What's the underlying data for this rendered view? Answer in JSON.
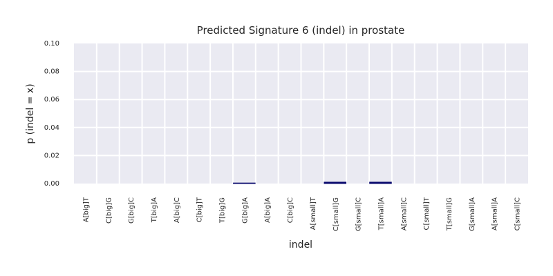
{
  "chart_data": {
    "type": "bar",
    "title": "Predicted Signature 6 (indel) in prostate",
    "xlabel": "indel",
    "ylabel": "p (indel = x)",
    "categories": [
      "A[big]T",
      "C[big]G",
      "G[big]C",
      "T[big]A",
      "A[big]C",
      "C[big]T",
      "T[big]G",
      "G[big]A",
      "A[big]A",
      "C[big]C",
      "A[small]T",
      "C[small]G",
      "G[small]C",
      "T[small]A",
      "A[small]C",
      "C[small]T",
      "T[small]G",
      "G[small]A",
      "A[small]A",
      "C[small]C"
    ],
    "values": [
      0,
      0,
      0,
      0,
      0,
      0,
      0,
      0.0004,
      0,
      0,
      0,
      0.001,
      0,
      0.001,
      0,
      0,
      0,
      0,
      0,
      0
    ],
    "yticks": [
      "0.00",
      "0.02",
      "0.04",
      "0.06",
      "0.08",
      "0.10"
    ],
    "ylim": [
      0,
      0.1
    ],
    "grid": true,
    "bar_color": "#0b0b6e",
    "background_color": "#eaeaf2",
    "grid_color": "#ffffff"
  }
}
